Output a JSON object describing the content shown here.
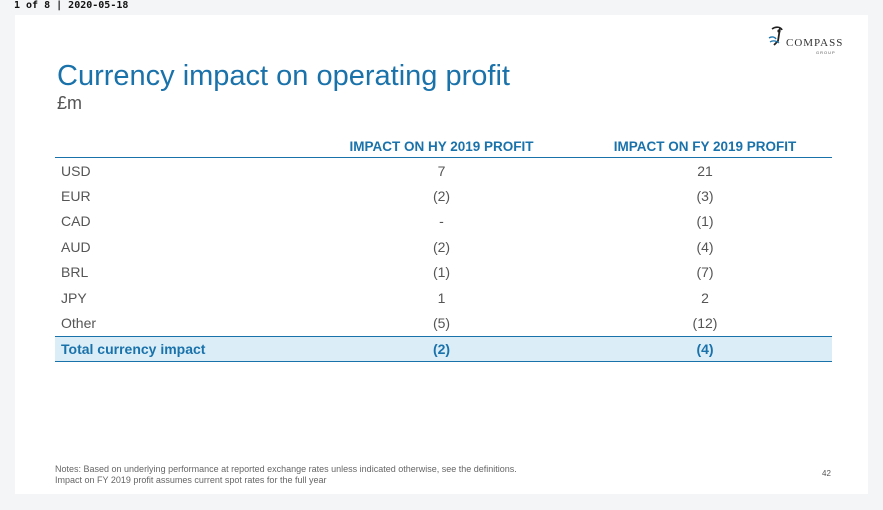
{
  "header": {
    "page_info": "1 of 8 | 2020-05-18"
  },
  "logo": {
    "name": "COMPASS",
    "sub": "GROUP"
  },
  "slide": {
    "title": "Currency impact on operating profit",
    "subtitle": "£m"
  },
  "table": {
    "columns": [
      "",
      "IMPACT ON HY 2019 PROFIT",
      "IMPACT ON FY 2019 PROFIT"
    ],
    "rows": [
      [
        "USD",
        "7",
        "21"
      ],
      [
        "EUR",
        "(2)",
        "(3)"
      ],
      [
        "CAD",
        "-",
        "(1)"
      ],
      [
        "AUD",
        "(2)",
        "(4)"
      ],
      [
        "BRL",
        "(1)",
        "(7)"
      ],
      [
        "JPY",
        "1",
        "2"
      ],
      [
        "Other",
        "(5)",
        "(12)"
      ]
    ],
    "total": [
      "Total currency impact",
      "(2)",
      "(4)"
    ]
  },
  "notes": {
    "line1": "Notes: Based on underlying performance at reported exchange rates unless indicated otherwise, see the definitions.",
    "line2": "Impact on FY 2019 profit assumes current spot rates for the full year"
  },
  "page_number": "42",
  "colors": {
    "accent": "#1a72ab",
    "total_bg": "#dbeef8"
  }
}
